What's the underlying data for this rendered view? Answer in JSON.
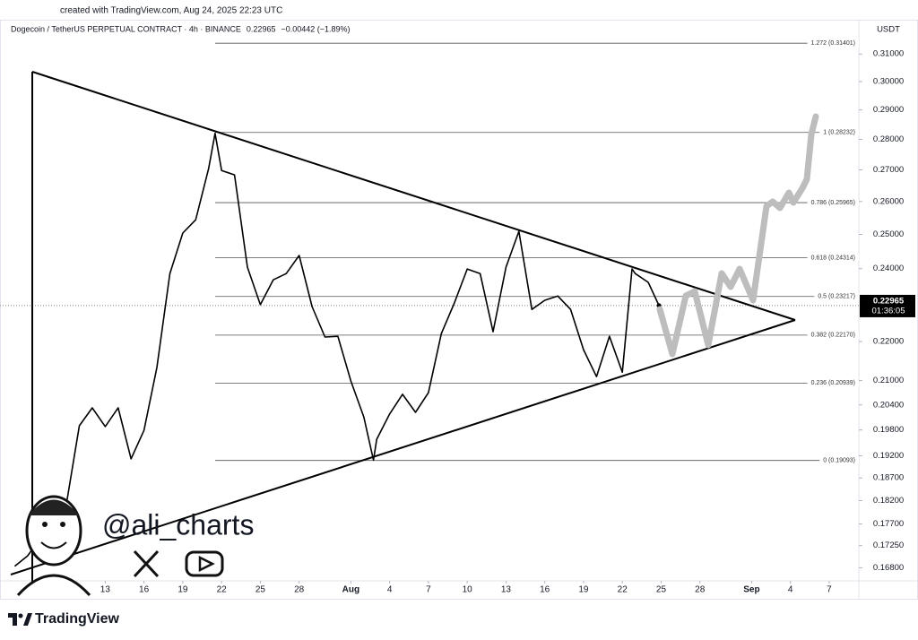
{
  "header": "created with TradingView.com, Aug 24, 2025 22:23 UTC",
  "brand": "TradingView",
  "watermark": "@ali_charts",
  "chart_data": {
    "type": "line",
    "title": "Dogecoin / TetherUS PERPETUAL CONTRACT · 4h · BINANCE",
    "last_price": 0.22965,
    "change_label": "−0.00442 (−1.89%)",
    "countdown": "01:36:05",
    "y_axis_label": "USDT",
    "log_scale": true,
    "xlim": [
      "2025-07-05T10:00",
      "2025-09-09T07:00"
    ],
    "ylim": [
      0.1654,
      0.3161
    ],
    "xticks": [
      {
        "value": "2025-07-13T00:00",
        "label": "13"
      },
      {
        "value": "2025-07-16T00:00",
        "label": "16"
      },
      {
        "value": "2025-07-19T00:00",
        "label": "19"
      },
      {
        "value": "2025-07-22T00:00",
        "label": "22"
      },
      {
        "value": "2025-07-25T00:00",
        "label": "25"
      },
      {
        "value": "2025-07-28T00:00",
        "label": "28"
      },
      {
        "value": "2025-08-01T00:00",
        "label": "Aug"
      },
      {
        "value": "2025-08-04T00:00",
        "label": "4"
      },
      {
        "value": "2025-08-07T00:00",
        "label": "7"
      },
      {
        "value": "2025-08-10T00:00",
        "label": "10"
      },
      {
        "value": "2025-08-13T00:00",
        "label": "13"
      },
      {
        "value": "2025-08-16T00:00",
        "label": "16"
      },
      {
        "value": "2025-08-19T00:00",
        "label": "19"
      },
      {
        "value": "2025-08-22T00:00",
        "label": "22"
      },
      {
        "value": "2025-08-25T00:00",
        "label": "25"
      },
      {
        "value": "2025-08-28T00:00",
        "label": "28"
      },
      {
        "value": "2025-09-01T00:00",
        "label": "Sep"
      },
      {
        "value": "2025-09-04T00:00",
        "label": "4"
      },
      {
        "value": "2025-09-07T00:00",
        "label": "7"
      }
    ],
    "yticks": [
      {
        "value": 0.31,
        "label": "0.31000"
      },
      {
        "value": 0.3,
        "label": "0.30000"
      },
      {
        "value": 0.29,
        "label": "0.29000"
      },
      {
        "value": 0.28,
        "label": "0.28000"
      },
      {
        "value": 0.27,
        "label": "0.27000"
      },
      {
        "value": 0.26,
        "label": "0.26000"
      },
      {
        "value": 0.25,
        "label": "0.25000"
      },
      {
        "value": 0.24,
        "label": "0.24000"
      },
      {
        "value": 0.22,
        "label": "0.22000"
      },
      {
        "value": 0.21,
        "label": "0.21000"
      },
      {
        "value": 0.204,
        "label": "0.20400"
      },
      {
        "value": 0.198,
        "label": "0.19800"
      },
      {
        "value": 0.192,
        "label": "0.19200"
      },
      {
        "value": 0.187,
        "label": "0.18700"
      },
      {
        "value": 0.182,
        "label": "0.18200"
      },
      {
        "value": 0.177,
        "label": "0.17700"
      },
      {
        "value": 0.1725,
        "label": "0.17250"
      },
      {
        "value": 0.168,
        "label": "0.16800"
      }
    ],
    "fib_levels": [
      {
        "value": 0.31401,
        "label": "1.272 (0.31401)"
      },
      {
        "value": 0.28232,
        "label": "1 (0.28232)"
      },
      {
        "value": 0.25965,
        "label": "0.786 (0.25965)"
      },
      {
        "value": 0.24314,
        "label": "0.618 (0.24314)"
      },
      {
        "value": 0.23217,
        "label": "0.5 (0.23217)"
      },
      {
        "value": 0.2217,
        "label": "0.382 (0.22170)"
      },
      {
        "value": 0.20939,
        "label": "0.236 (0.20939)"
      },
      {
        "value": 0.19093,
        "label": "0 (0.19093)"
      }
    ],
    "series": [
      {
        "color": "#000000",
        "x": [
          "2025-07-06T00:00",
          "2025-07-07T00:00",
          "2025-07-08T00:00",
          "2025-07-09T00:00",
          "2025-07-10T00:00",
          "2025-07-11T00:00",
          "2025-07-12T00:00",
          "2025-07-13T00:00",
          "2025-07-14T00:00",
          "2025-07-15T00:00",
          "2025-07-16T00:00",
          "2025-07-17T00:00",
          "2025-07-18T00:00",
          "2025-07-19T00:00",
          "2025-07-20T00:00",
          "2025-07-21T00:00",
          "2025-07-21T12:00",
          "2025-07-22T00:00",
          "2025-07-23T00:00",
          "2025-07-24T00:00",
          "2025-07-25T00:00",
          "2025-07-26T00:00",
          "2025-07-27T00:00",
          "2025-07-28T00:00",
          "2025-07-29T00:00",
          "2025-07-30T00:00",
          "2025-07-31T00:00",
          "2025-08-01T00:00",
          "2025-08-02T00:00",
          "2025-08-02T18:00",
          "2025-08-03T00:00",
          "2025-08-04T00:00",
          "2025-08-05T00:00",
          "2025-08-06T00:00",
          "2025-08-07T00:00",
          "2025-08-08T00:00",
          "2025-08-09T00:00",
          "2025-08-10T00:00",
          "2025-08-11T00:00",
          "2025-08-12T00:00",
          "2025-08-13T00:00",
          "2025-08-14T00:00",
          "2025-08-15T00:00",
          "2025-08-16T00:00",
          "2025-08-17T00:00",
          "2025-08-18T00:00",
          "2025-08-19T00:00",
          "2025-08-20T00:00",
          "2025-08-21T00:00",
          "2025-08-22T00:00",
          "2025-08-22T18:00",
          "2025-08-23T00:00",
          "2025-08-24T00:00",
          "2025-08-24T20:00"
        ],
        "values": [
          0.1683,
          0.1704,
          0.1741,
          0.176,
          0.1813,
          0.199,
          0.2033,
          0.1988,
          0.2033,
          0.1913,
          0.1979,
          0.2133,
          0.2386,
          0.2504,
          0.2544,
          0.2704,
          0.282,
          0.2698,
          0.2684,
          0.2404,
          0.2299,
          0.2368,
          0.2386,
          0.2438,
          0.2294,
          0.2212,
          0.2214,
          0.2099,
          0.2011,
          0.191,
          0.1958,
          0.2018,
          0.2066,
          0.2022,
          0.207,
          0.2221,
          0.2303,
          0.2399,
          0.2386,
          0.2226,
          0.2404,
          0.2509,
          0.2286,
          0.2311,
          0.2323,
          0.2286,
          0.2179,
          0.211,
          0.2214,
          0.2121,
          0.2399,
          0.2386,
          0.2361,
          0.22965
        ]
      }
    ]
  }
}
